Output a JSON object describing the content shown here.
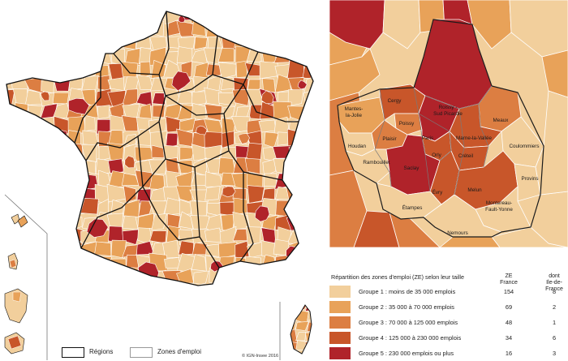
{
  "colors": {
    "g1": "#f2cf9c",
    "g2": "#e8a259",
    "g3": "#dc7e42",
    "g4": "#c8562a",
    "g5": "#b0232a",
    "region_border": "#111111",
    "ze_border": "#ffffff",
    "inset_dept_border": "#777777"
  },
  "legend": {
    "title": "Répartition des zones d'emploi (ZE) selon leur taille",
    "col_ze": "ZE\nFrance",
    "col_idf": "dont\nIle-de-France",
    "rows": [
      {
        "label": "Groupe 1 : moins de 35 000 emplois",
        "ze": "154",
        "idf": "8"
      },
      {
        "label": "Groupe 2 : 35 000 à 70 000 emplois",
        "ze": "69",
        "idf": "2"
      },
      {
        "label": "Groupe 3 : 70 000 à 125 000 emplois",
        "ze": "48",
        "idf": "1"
      },
      {
        "label": "Groupe 4 : 125 000 à 230 000 emplois",
        "ze": "34",
        "idf": "6"
      },
      {
        "label": "Groupe 5 : 230 000 emplois ou plus",
        "ze": "16",
        "idf": "3"
      }
    ]
  },
  "bottom_legend": {
    "regions": "Régions",
    "zones": "Zones d'emploi"
  },
  "copyright": "© IGN-Insee 2016",
  "inset_labels": {
    "mantes": "Mantes-\nla-Jolie",
    "cergy": "Cergy",
    "roissy": "Roissy -\nSud Picardie",
    "poissy": "Poissy",
    "meaux": "Meaux",
    "paris": "Paris",
    "plaisir": "Plaisir",
    "houdan": "Houdan",
    "mlv": "Marne-la-Vallée",
    "orly": "Orly",
    "creteil": "Créteil",
    "coulommiers": "Coulommiers",
    "rambouillet": "Rambouillet",
    "saclay": "Saclay",
    "provins": "Provins",
    "evry": "Évry",
    "melun": "Melun",
    "montereau": "Montereau-\nFault-Yonne",
    "etampes": "Étampes",
    "nemours": "Nemours"
  }
}
